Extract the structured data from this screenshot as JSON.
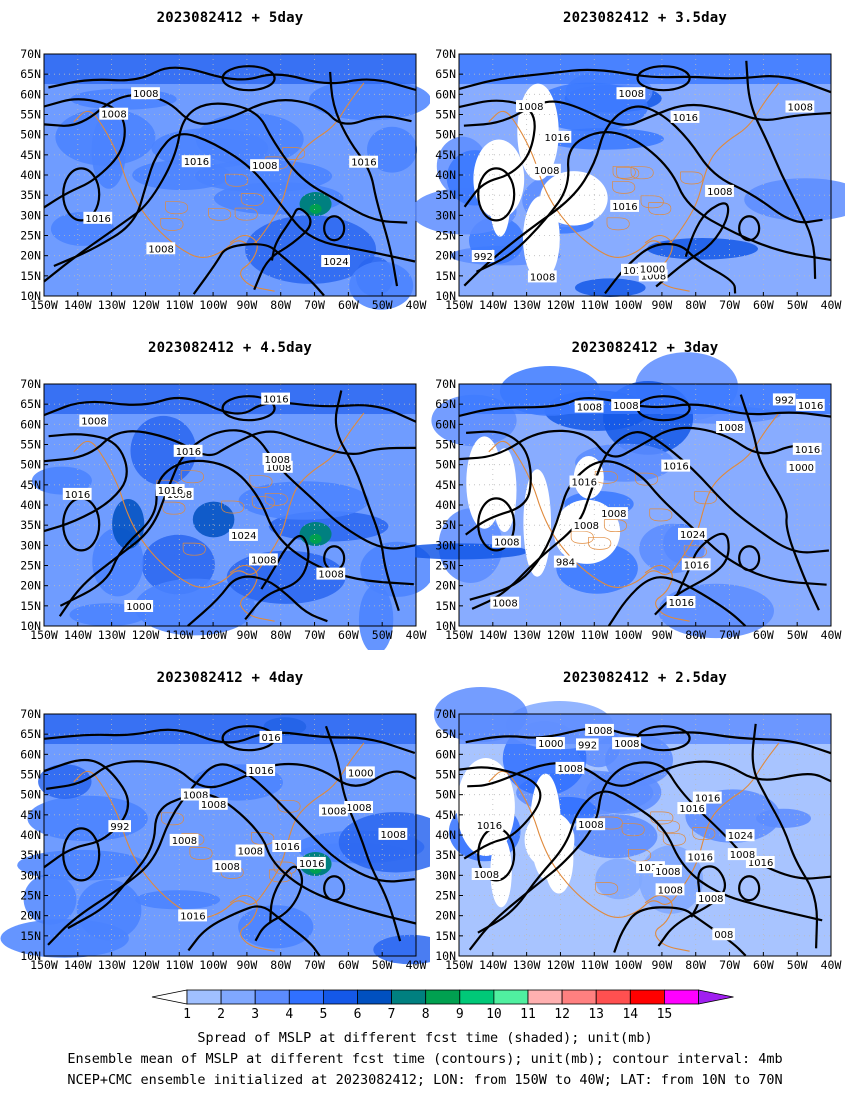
{
  "panels": [
    {
      "id": "p5",
      "title": "2023082412 + 5day",
      "spread_pattern": "high",
      "contour_labels": [
        "1008",
        "1016",
        "1016",
        "1024",
        "1016",
        "1008",
        "1008",
        "1008"
      ]
    },
    {
      "id": "p35",
      "title": "2023082412 + 3.5day",
      "spread_pattern": "medium",
      "contour_labels": [
        "1008",
        "1016",
        "992",
        "1000",
        "1008",
        "1016",
        "1016",
        "1008",
        "1016",
        "1008",
        "1008",
        "1008",
        "1008"
      ]
    },
    {
      "id": "p45",
      "title": "2023082412 + 4.5day",
      "spread_pattern": "high",
      "contour_labels": [
        "1008",
        "1016",
        "1008",
        "1000",
        "1008",
        "1016",
        "1016",
        "1008",
        "1024",
        "1016",
        "1008",
        "1008"
      ]
    },
    {
      "id": "p3",
      "title": "2023082412 + 3day",
      "spread_pattern": "medium",
      "contour_labels": [
        "1008",
        "1016",
        "984",
        "992",
        "1000",
        "1008",
        "1016",
        "1016",
        "1024",
        "1016",
        "1016",
        "1016",
        "1008",
        "1008",
        "1008",
        "1008",
        "1008"
      ]
    },
    {
      "id": "p4",
      "title": "2023082412 + 4day",
      "spread_pattern": "high",
      "contour_labels": [
        "1008",
        "992",
        "1000",
        "016",
        "1016",
        "1008",
        "1016",
        "1008",
        "1016",
        "1008",
        "1008",
        "1008",
        "1016",
        "1008",
        "1008"
      ]
    },
    {
      "id": "p25",
      "title": "2023082412 + 2.5day",
      "spread_pattern": "low",
      "contour_labels": [
        "1016",
        "008",
        "1016",
        "992",
        "1000",
        "1008",
        "1016",
        "1024",
        "1016",
        "1016",
        "1008",
        "1016",
        "1008",
        "1008",
        "1008",
        "1008",
        "1008",
        "1008",
        "1008"
      ]
    }
  ],
  "axes": {
    "lat_labels": [
      "70N",
      "65N",
      "60N",
      "55N",
      "50N",
      "45N",
      "40N",
      "35N",
      "30N",
      "25N",
      "20N",
      "15N",
      "10N"
    ],
    "lon_labels": [
      "150W",
      "140W",
      "130W",
      "120W",
      "110W",
      "100W",
      "90W",
      "80W",
      "70W",
      "60W",
      "50W",
      "40W"
    ]
  },
  "colorbar": {
    "levels": [
      "1",
      "2",
      "3",
      "4",
      "5",
      "6",
      "7",
      "8",
      "9",
      "10",
      "11",
      "12",
      "13",
      "14",
      "15"
    ],
    "colors": [
      "#ffffff",
      "#a0c0ff",
      "#80a8ff",
      "#5c8cff",
      "#3070ff",
      "#1458e8",
      "#0050c0",
      "#008080",
      "#00a050",
      "#00c878",
      "#50f0a0",
      "#ffb0b0",
      "#ff8080",
      "#ff5050",
      "#ff0000",
      "#ff00ff",
      "#a020f0"
    ]
  },
  "caption": {
    "line1": "Spread of MSLP at different fcst time (shaded); unit(mb)",
    "line2": "Ensemble mean of MSLP at different fcst time (contours); unit(mb); contour interval: 4mb",
    "line3": "NCEP+CMC ensemble initialized at 2023082412; LON: from 150W to 40W; LAT: from 10N to 70N"
  }
}
